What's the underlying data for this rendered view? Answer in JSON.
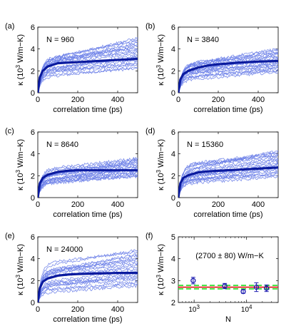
{
  "chart_data": [
    {
      "type": "line",
      "panel_label": "(a)",
      "annotation": "N = 960",
      "xlabel": "correlation time (ps)",
      "ylabel": "κ (10³ W/m−K)",
      "xlim": [
        0,
        500
      ],
      "ylim": [
        0,
        6
      ],
      "xticks": [
        "0",
        "200",
        "400"
      ],
      "yticks": [
        "0",
        "2",
        "4",
        "6"
      ],
      "series": [
        {
          "role": "individual runs",
          "color": "#6b7fe8",
          "count": 20,
          "final_range": [
            2.2,
            5.0
          ]
        },
        {
          "role": "average",
          "color": "#0a1a9e",
          "x": [
            0,
            10,
            25,
            50,
            100,
            150,
            200,
            300,
            400,
            500
          ],
          "y": [
            0,
            1.4,
            2.0,
            2.4,
            2.7,
            2.75,
            2.8,
            2.9,
            3.0,
            3.1
          ]
        }
      ]
    },
    {
      "type": "line",
      "panel_label": "(b)",
      "annotation": "N = 3840",
      "xlabel": "correlation time (ps)",
      "ylabel": "κ (10³ W/m−K)",
      "xlim": [
        0,
        500
      ],
      "ylim": [
        0,
        6
      ],
      "xticks": [
        "0",
        "200",
        "400"
      ],
      "yticks": [
        "0",
        "2",
        "4",
        "6"
      ],
      "series": [
        {
          "role": "individual runs",
          "color": "#6b7fe8",
          "count": 20,
          "final_range": [
            1.9,
            4.0
          ]
        },
        {
          "role": "average",
          "color": "#0a1a9e",
          "x": [
            0,
            10,
            25,
            50,
            100,
            150,
            200,
            300,
            400,
            500
          ],
          "y": [
            0,
            1.2,
            1.7,
            2.0,
            2.3,
            2.5,
            2.6,
            2.75,
            2.85,
            2.9
          ]
        }
      ]
    },
    {
      "type": "line",
      "panel_label": "(c)",
      "annotation": "N = 8640",
      "xlabel": "correlation time (ps)",
      "ylabel": "κ (10³ W/m−K)",
      "xlim": [
        0,
        500
      ],
      "ylim": [
        0,
        6
      ],
      "xticks": [
        "0",
        "200",
        "400"
      ],
      "yticks": [
        "0",
        "2",
        "4",
        "6"
      ],
      "series": [
        {
          "role": "individual runs",
          "color": "#6b7fe8",
          "count": 20,
          "final_range": [
            1.9,
            3.6
          ]
        },
        {
          "role": "average",
          "color": "#0a1a9e",
          "x": [
            0,
            10,
            25,
            50,
            100,
            150,
            200,
            300,
            400,
            500
          ],
          "y": [
            0,
            1.3,
            1.8,
            2.1,
            2.35,
            2.45,
            2.5,
            2.5,
            2.5,
            2.5
          ]
        }
      ]
    },
    {
      "type": "line",
      "panel_label": "(d)",
      "annotation": "N = 15360",
      "xlabel": "correlation time (ps)",
      "ylabel": "κ (10³ W/m−K)",
      "xlim": [
        0,
        500
      ],
      "ylim": [
        0,
        6
      ],
      "xticks": [
        "0",
        "200",
        "400"
      ],
      "yticks": [
        "0",
        "2",
        "4",
        "6"
      ],
      "series": [
        {
          "role": "individual runs",
          "color": "#6b7fe8",
          "count": 20,
          "final_range": [
            1.9,
            4.3
          ]
        },
        {
          "role": "average",
          "color": "#0a1a9e",
          "x": [
            0,
            10,
            25,
            50,
            100,
            150,
            200,
            300,
            400,
            500
          ],
          "y": [
            0,
            1.3,
            1.8,
            2.05,
            2.3,
            2.4,
            2.45,
            2.55,
            2.65,
            2.75
          ]
        }
      ]
    },
    {
      "type": "line",
      "panel_label": "(e)",
      "annotation": "N = 24000",
      "xlabel": "correlation time (ps)",
      "ylabel": "κ (10³ W/m−K)",
      "xlim": [
        0,
        500
      ],
      "ylim": [
        0,
        6
      ],
      "xticks": [
        "0",
        "200",
        "400"
      ],
      "yticks": [
        "0",
        "2",
        "4",
        "6"
      ],
      "series": [
        {
          "role": "individual runs",
          "color": "#6b7fe8",
          "count": 20,
          "final_range": [
            1.5,
            4.8
          ]
        },
        {
          "role": "average",
          "color": "#0a1a9e",
          "x": [
            0,
            10,
            25,
            50,
            100,
            150,
            200,
            300,
            400,
            500
          ],
          "y": [
            0,
            1.3,
            1.9,
            2.2,
            2.45,
            2.55,
            2.6,
            2.65,
            2.7,
            2.7
          ]
        }
      ]
    },
    {
      "type": "scatter",
      "panel_label": "(f)",
      "annotation": "(2700 ± 80) W/m−K",
      "xlabel": "N",
      "ylabel": "κ (10³ W/m−K)",
      "xscale": "log",
      "xlim": [
        500,
        40000
      ],
      "ylim": [
        2,
        5
      ],
      "xticks": [
        "10³",
        "10⁴"
      ],
      "yticks": [
        "2",
        "3",
        "4",
        "5"
      ],
      "series": [
        {
          "role": "simulations",
          "color": "#1a1ab0",
          "x": [
            960,
            3840,
            8640,
            15360,
            24000
          ],
          "y": [
            3.0,
            2.75,
            2.5,
            2.7,
            2.65
          ],
          "yerr": [
            0.15,
            0.12,
            0.08,
            0.2,
            0.15
          ]
        }
      ],
      "reference_lines": [
        {
          "style": "solid",
          "color": "#e01010",
          "y": 2.7
        },
        {
          "style": "dashed",
          "color": "#22dd22",
          "y": 2.62
        },
        {
          "style": "dashed",
          "color": "#22dd22",
          "y": 2.78
        }
      ]
    }
  ]
}
